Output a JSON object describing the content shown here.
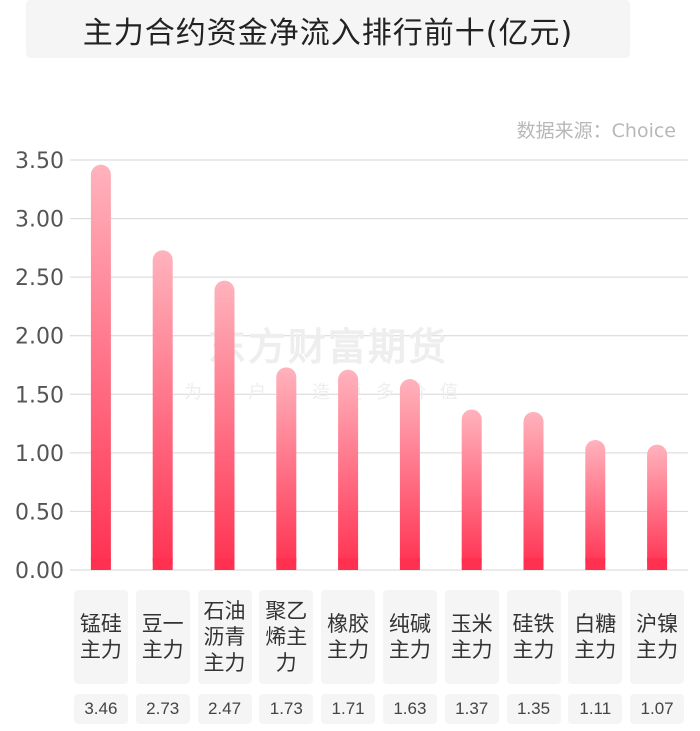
{
  "title": "主力合约资金净流入排行前十(亿元)",
  "source": "数据来源：Choice",
  "watermark": {
    "main": "东方财富期货",
    "sub": "为用户创造更多价值"
  },
  "colors": {
    "bar_top": "#ffb3bd",
    "bar_bottom": "#ff3050",
    "grid": "#d6d6d6"
  },
  "chart_data": {
    "type": "bar",
    "categories": [
      "锰硅主力",
      "豆一主力",
      "石油沥青主力",
      "聚乙烯主力",
      "橡胶主力",
      "纯碱主力",
      "玉米主力",
      "硅铁主力",
      "白糖主力",
      "沪镍主力"
    ],
    "values": [
      3.46,
      2.73,
      2.47,
      1.73,
      1.71,
      1.63,
      1.37,
      1.35,
      1.11,
      1.07
    ],
    "value_labels": [
      "3.46",
      "2.73",
      "2.47",
      "1.73",
      "1.71",
      "1.63",
      "1.37",
      "1.35",
      "1.11",
      "1.07"
    ],
    "yticks": [
      "0.00",
      "0.50",
      "1.00",
      "1.50",
      "2.00",
      "2.50",
      "3.00",
      "3.50"
    ],
    "ylim": [
      0,
      3.5
    ],
    "grid": true
  }
}
